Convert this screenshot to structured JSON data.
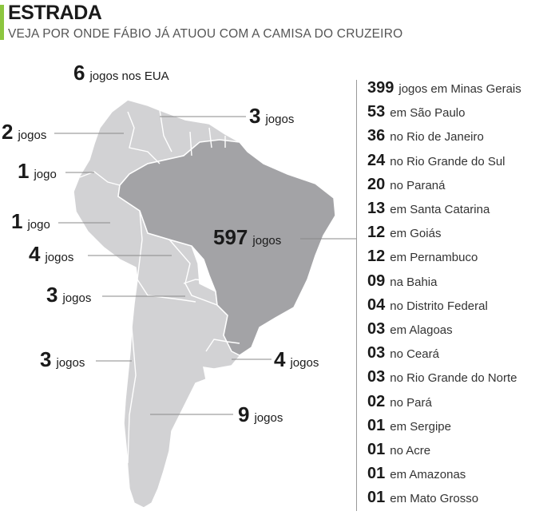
{
  "header": {
    "title": "ESTRADA",
    "subtitle": "VEJA POR ONDE FÁBIO JÁ ATUOU COM A CAMISA DO CRUZEIRO",
    "accent_color": "#8cc63f"
  },
  "usa": {
    "number": "6",
    "text": "jogos nos EUA"
  },
  "callouts": [
    {
      "id": "colombia",
      "number": "2",
      "text": "jogos"
    },
    {
      "id": "venezuela",
      "number": "3",
      "text": "jogos"
    },
    {
      "id": "ecuador",
      "number": "1",
      "text": "jogo"
    },
    {
      "id": "peru",
      "number": "1",
      "text": "jogo"
    },
    {
      "id": "brazil",
      "number": "597",
      "text": "jogos"
    },
    {
      "id": "bolivia",
      "number": "4",
      "text": "jogos"
    },
    {
      "id": "paraguay",
      "number": "3",
      "text": "jogos"
    },
    {
      "id": "chile",
      "number": "3",
      "text": "jogos"
    },
    {
      "id": "uruguay",
      "number": "4",
      "text": "jogos"
    },
    {
      "id": "argentina",
      "number": "9",
      "text": "jogos"
    }
  ],
  "brazil_states": [
    {
      "number": "399",
      "text": "jogos em Minas Gerais"
    },
    {
      "number": "53",
      "text": "em São Paulo"
    },
    {
      "number": "36",
      "text": "no Rio de Janeiro"
    },
    {
      "number": "24",
      "text": "no Rio Grande do Sul"
    },
    {
      "number": "20",
      "text": "no Paraná"
    },
    {
      "number": "13",
      "text": "em Santa Catarina"
    },
    {
      "number": "12",
      "text": "em Goiás"
    },
    {
      "number": "12",
      "text": "em Pernambuco"
    },
    {
      "number": "09",
      "text": "na Bahia"
    },
    {
      "number": "04",
      "text": "no Distrito Federal"
    },
    {
      "number": "03",
      "text": "em Alagoas"
    },
    {
      "number": "03",
      "text": "no Ceará"
    },
    {
      "number": "03",
      "text": "no Rio Grande do Norte"
    },
    {
      "number": "02",
      "text": "no Pará"
    },
    {
      "number": "01",
      "text": "em Sergipe"
    },
    {
      "number": "01",
      "text": "no Acre"
    },
    {
      "number": "01",
      "text": "em Amazonas"
    },
    {
      "number": "01",
      "text": "em Mato Grosso"
    }
  ],
  "colors": {
    "brazil_fill": "#a3a3a6",
    "other_fill": "#d2d2d4",
    "border": "#ffffff",
    "leader": "#8a8a8a"
  }
}
